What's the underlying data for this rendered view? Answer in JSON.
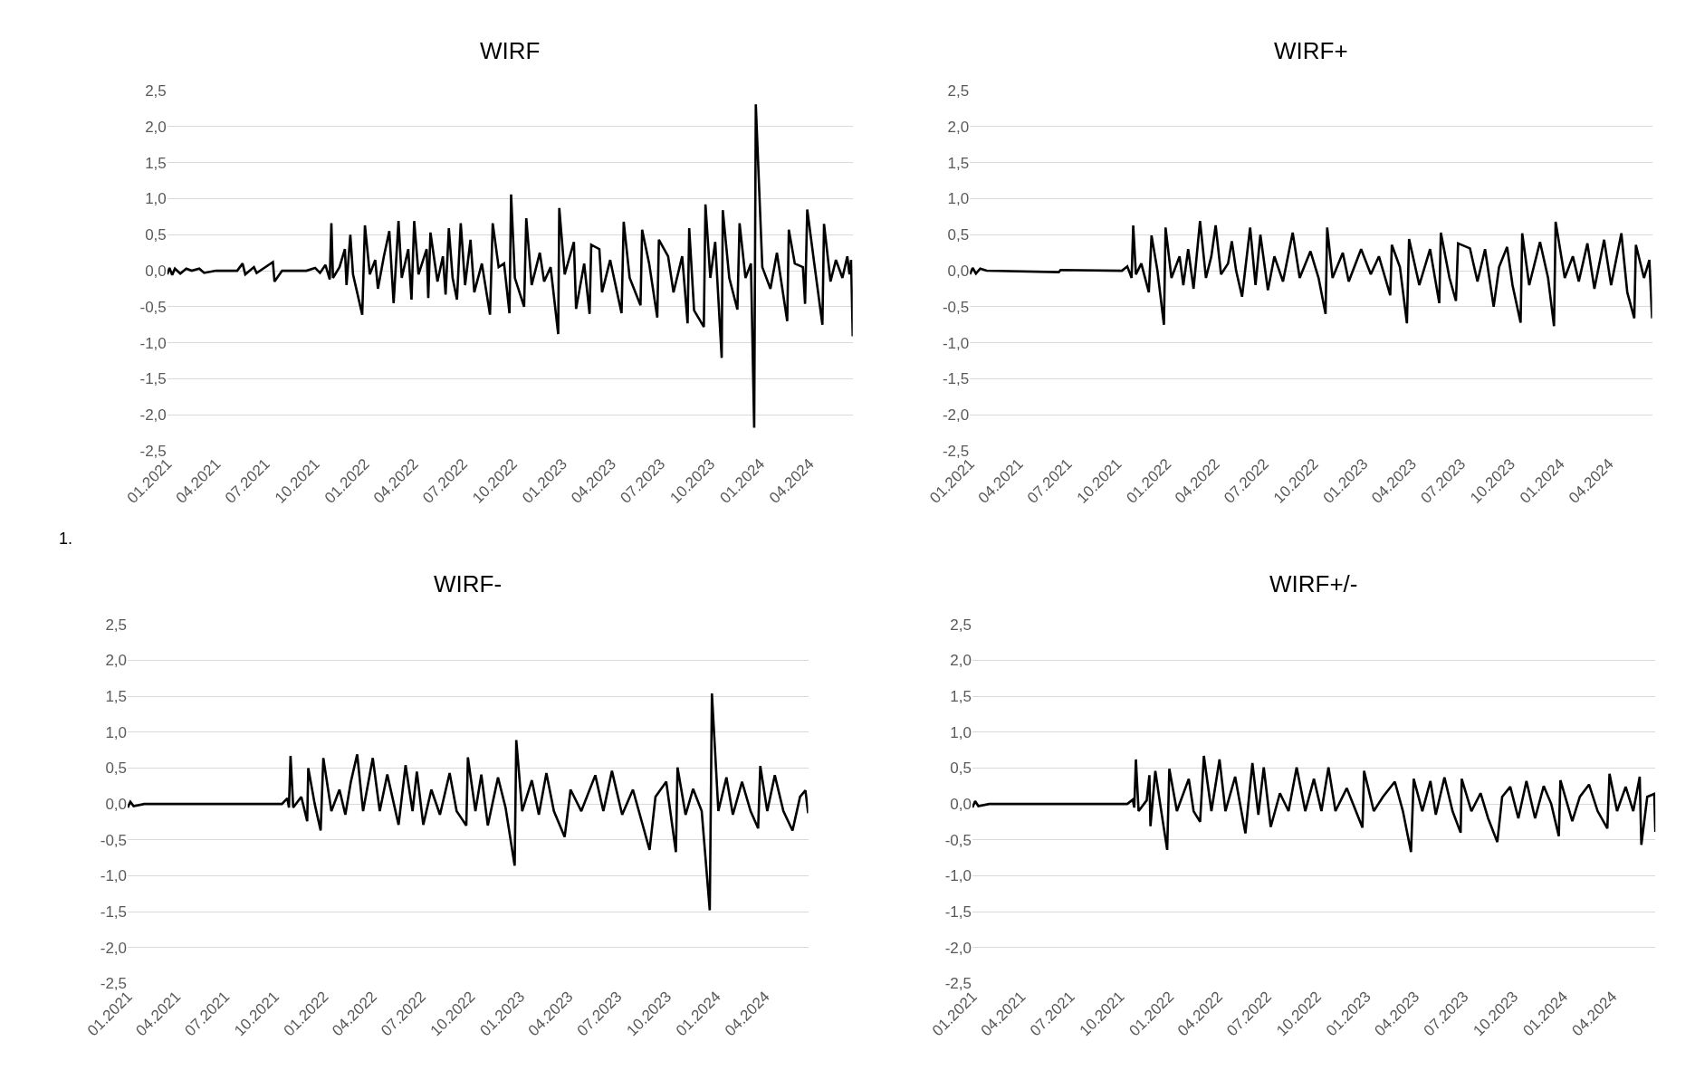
{
  "chart_data": [
    {
      "type": "line",
      "title": "WIRF",
      "color": "#000000",
      "grid": "y",
      "annotations": [
        "1."
      ],
      "xlim": [
        "2021-01-01",
        "2024-06-20"
      ],
      "ylim": [
        -2.5,
        2.5
      ],
      "xticks": [
        {
          "value": "2021-01-01",
          "label": "01.2021"
        },
        {
          "value": "2021-04-01",
          "label": "04.2021"
        },
        {
          "value": "2021-07-01",
          "label": "07.2021"
        },
        {
          "value": "2021-10-01",
          "label": "10.2021"
        },
        {
          "value": "2022-01-01",
          "label": "01.2022"
        },
        {
          "value": "2022-04-01",
          "label": "04.2022"
        },
        {
          "value": "2022-07-01",
          "label": "07.2022"
        },
        {
          "value": "2022-10-01",
          "label": "10.2022"
        },
        {
          "value": "2023-01-01",
          "label": "01.2023"
        },
        {
          "value": "2023-04-01",
          "label": "04.2023"
        },
        {
          "value": "2023-07-01",
          "label": "07.2023"
        },
        {
          "value": "2023-10-01",
          "label": "10.2023"
        },
        {
          "value": "2024-01-01",
          "label": "01.2024"
        },
        {
          "value": "2024-04-01",
          "label": "04.2024"
        }
      ],
      "yticks": [
        {
          "value": -2.5,
          "label": "-2,5"
        },
        {
          "value": -2,
          "label": "-2,0"
        },
        {
          "value": -1.5,
          "label": "-1,5"
        },
        {
          "value": -1,
          "label": "-1,0"
        },
        {
          "value": -0.5,
          "label": "-0,5"
        },
        {
          "value": 0,
          "label": "0,0"
        },
        {
          "value": 0.5,
          "label": "0,5"
        },
        {
          "value": 1,
          "label": "1,0"
        },
        {
          "value": 1.5,
          "label": "1,5"
        },
        {
          "value": 2,
          "label": "2,0"
        },
        {
          "value": 2.5,
          "label": "2,5"
        }
      ],
      "x": [
        "2021-01-01",
        "2021-01-05",
        "2021-01-10",
        "2021-01-15",
        "2021-01-25",
        "2021-02-05",
        "2021-02-15",
        "2021-03-01",
        "2021-03-10",
        "2021-04-01",
        "2021-05-10",
        "2021-05-20",
        "2021-05-25",
        "2021-06-10",
        "2021-06-15",
        "2021-07-15",
        "2021-07-18",
        "2021-08-01",
        "2021-09-15",
        "2021-10-01",
        "2021-10-10",
        "2021-10-20",
        "2021-10-28",
        "2021-10-31",
        "2021-11-03",
        "2021-11-15",
        "2021-11-25",
        "2021-11-28",
        "2021-12-05",
        "2021-12-10",
        "2021-12-27",
        "2022-01-01",
        "2022-01-10",
        "2022-01-20",
        "2022-01-25",
        "2022-02-05",
        "2022-02-15",
        "2022-02-23",
        "2022-03-04",
        "2022-03-10",
        "2022-03-22",
        "2022-03-28",
        "2022-04-02",
        "2022-04-10",
        "2022-04-25",
        "2022-04-28",
        "2022-05-02",
        "2022-05-15",
        "2022-05-25",
        "2022-05-30",
        "2022-06-05",
        "2022-06-12",
        "2022-06-20",
        "2022-06-27",
        "2022-07-05",
        "2022-07-15",
        "2022-07-22",
        "2022-08-05",
        "2022-08-20",
        "2022-08-25",
        "2022-09-05",
        "2022-09-15",
        "2022-09-25",
        "2022-09-28",
        "2022-10-05",
        "2022-10-22",
        "2022-10-26",
        "2022-11-05",
        "2022-11-20",
        "2022-11-28",
        "2022-12-10",
        "2022-12-24",
        "2022-12-26",
        "2023-01-05",
        "2023-01-22",
        "2023-01-26",
        "2023-02-10",
        "2023-02-20",
        "2023-02-23",
        "2023-03-10",
        "2023-03-15",
        "2023-03-30",
        "2023-04-20",
        "2023-04-24",
        "2023-05-05",
        "2023-05-25",
        "2023-05-28",
        "2023-06-10",
        "2023-06-25",
        "2023-06-28",
        "2023-07-15",
        "2023-07-25",
        "2023-08-10",
        "2023-08-20",
        "2023-08-23",
        "2023-09-01",
        "2023-09-19",
        "2023-09-22",
        "2023-10-01",
        "2023-10-10",
        "2023-10-22",
        "2023-10-24",
        "2023-11-05",
        "2023-11-20",
        "2023-11-24",
        "2023-12-05",
        "2023-12-15",
        "2023-12-21",
        "2023-12-24",
        "2024-01-05",
        "2024-01-20",
        "2024-02-01",
        "2024-02-20",
        "2024-02-23",
        "2024-03-05",
        "2024-03-20",
        "2024-03-24",
        "2024-03-28",
        "2024-04-10",
        "2024-04-25",
        "2024-04-28",
        "2024-05-10",
        "2024-05-20",
        "2024-06-01",
        "2024-06-10",
        "2024-06-14",
        "2024-06-17",
        "2024-06-20"
      ],
      "values": [
        -0.05,
        0.04,
        -0.06,
        0.03,
        -0.04,
        0.03,
        0,
        0.03,
        -0.03,
        0,
        0,
        0.1,
        -0.05,
        0.05,
        -0.03,
        0.12,
        -0.15,
        0,
        0,
        0.04,
        -0.03,
        0.08,
        -0.12,
        0.66,
        -0.1,
        0.05,
        0.3,
        -0.2,
        0.5,
        -0.05,
        -0.61,
        0.63,
        -0.05,
        0.15,
        -0.25,
        0.2,
        0.55,
        -0.45,
        0.69,
        -0.1,
        0.3,
        -0.4,
        0.69,
        -0.05,
        0.3,
        -0.38,
        0.53,
        -0.15,
        0.2,
        -0.33,
        0.59,
        -0.1,
        -0.4,
        0.66,
        -0.2,
        0.43,
        -0.3,
        0.1,
        -0.61,
        0.66,
        0.05,
        0.1,
        -0.59,
        1.06,
        -0.1,
        -0.5,
        0.73,
        -0.2,
        0.25,
        -0.15,
        0.05,
        -0.88,
        0.87,
        -0.05,
        0.4,
        -0.53,
        0.1,
        -0.6,
        0.36,
        0.3,
        -0.3,
        0.15,
        -0.59,
        0.68,
        -0.1,
        -0.48,
        0.57,
        0.1,
        -0.65,
        0.43,
        0.2,
        -0.3,
        0.2,
        -0.73,
        0.59,
        -0.55,
        -0.78,
        0.92,
        -0.1,
        0.4,
        -1.21,
        0.84,
        -0.1,
        -0.54,
        0.66,
        -0.1,
        0.1,
        -2.18,
        2.31,
        0.05,
        -0.25,
        0.25,
        -0.7,
        0.57,
        0.1,
        0.05,
        -0.46,
        0.85,
        0.1,
        -0.75,
        0.65,
        -0.15,
        0.15,
        -0.1,
        0.2,
        -0.05,
        0.15,
        -0.91
      ]
    },
    {
      "type": "line",
      "title": "WIRF+",
      "color": "#000000",
      "grid": "y",
      "xlim": [
        "2021-01-01",
        "2024-06-20"
      ],
      "ylim": [
        -2.5,
        2.5
      ],
      "xticks": [
        {
          "value": "2021-01-01",
          "label": "01.2021"
        },
        {
          "value": "2021-04-01",
          "label": "04.2021"
        },
        {
          "value": "2021-07-01",
          "label": "07.2021"
        },
        {
          "value": "2021-10-01",
          "label": "10.2021"
        },
        {
          "value": "2022-01-01",
          "label": "01.2022"
        },
        {
          "value": "2022-04-01",
          "label": "04.2022"
        },
        {
          "value": "2022-07-01",
          "label": "07.2022"
        },
        {
          "value": "2022-10-01",
          "label": "10.2022"
        },
        {
          "value": "2023-01-01",
          "label": "01.2023"
        },
        {
          "value": "2023-04-01",
          "label": "04.2023"
        },
        {
          "value": "2023-07-01",
          "label": "07.2023"
        },
        {
          "value": "2023-10-01",
          "label": "10.2023"
        },
        {
          "value": "2024-01-01",
          "label": "01.2024"
        },
        {
          "value": "2024-04-01",
          "label": "04.2024"
        }
      ],
      "yticks": [
        {
          "value": -2.5,
          "label": "-2,5"
        },
        {
          "value": -2,
          "label": "-2,0"
        },
        {
          "value": -1.5,
          "label": "-1,5"
        },
        {
          "value": -1,
          "label": "-1,0"
        },
        {
          "value": -0.5,
          "label": "-0,5"
        },
        {
          "value": 0,
          "label": "0,0"
        },
        {
          "value": 0.5,
          "label": "0,5"
        },
        {
          "value": 1,
          "label": "1,0"
        },
        {
          "value": 1.5,
          "label": "1,5"
        },
        {
          "value": 2,
          "label": "2,0"
        },
        {
          "value": 2.5,
          "label": "2,5"
        }
      ],
      "x": [
        "2021-01-01",
        "2021-01-06",
        "2021-01-12",
        "2021-01-20",
        "2021-02-01",
        "2021-06-15",
        "2021-06-18",
        "2021-10-10",
        "2021-10-20",
        "2021-10-28",
        "2021-10-31",
        "2021-11-05",
        "2021-11-15",
        "2021-11-29",
        "2021-12-04",
        "2021-12-15",
        "2021-12-27",
        "2021-12-30",
        "2022-01-10",
        "2022-01-25",
        "2022-02-01",
        "2022-02-10",
        "2022-02-20",
        "2022-03-04",
        "2022-03-15",
        "2022-03-25",
        "2022-04-02",
        "2022-04-12",
        "2022-04-25",
        "2022-05-02",
        "2022-05-10",
        "2022-05-21",
        "2022-06-05",
        "2022-06-15",
        "2022-06-24",
        "2022-07-08",
        "2022-07-20",
        "2022-08-05",
        "2022-08-23",
        "2022-09-05",
        "2022-09-25",
        "2022-10-10",
        "2022-10-23",
        "2022-10-26",
        "2022-11-05",
        "2022-11-24",
        "2022-12-05",
        "2022-12-28",
        "2023-01-15",
        "2023-01-30",
        "2023-02-20",
        "2023-02-23",
        "2023-03-10",
        "2023-03-23",
        "2023-03-27",
        "2023-04-15",
        "2023-05-05",
        "2023-05-22",
        "2023-05-25",
        "2023-06-10",
        "2023-06-22",
        "2023-06-26",
        "2023-07-18",
        "2023-08-01",
        "2023-08-15",
        "2023-08-31",
        "2023-09-10",
        "2023-09-25",
        "2023-10-05",
        "2023-10-20",
        "2023-10-23",
        "2023-11-05",
        "2023-11-25",
        "2023-12-10",
        "2023-12-21",
        "2023-12-24",
        "2024-01-10",
        "2024-01-25",
        "2024-02-05",
        "2024-02-21",
        "2024-03-05",
        "2024-03-23",
        "2024-04-05",
        "2024-04-24",
        "2024-05-05",
        "2024-05-18",
        "2024-05-21",
        "2024-06-05",
        "2024-06-15",
        "2024-06-20"
      ],
      "values": [
        -0.05,
        0.04,
        -0.04,
        0.03,
        0,
        -0.02,
        0.01,
        0,
        0.06,
        -0.1,
        0.63,
        -0.05,
        0.1,
        -0.3,
        0.49,
        0,
        -0.75,
        0.6,
        -0.1,
        0.2,
        -0.2,
        0.3,
        -0.25,
        0.69,
        -0.1,
        0.2,
        0.63,
        -0.05,
        0.1,
        0.41,
        0,
        -0.36,
        0.6,
        -0.2,
        0.5,
        -0.27,
        0.2,
        -0.15,
        0.53,
        -0.1,
        0.27,
        -0.1,
        -0.6,
        0.6,
        -0.1,
        0.25,
        -0.15,
        0.3,
        -0.05,
        0.2,
        -0.34,
        0.36,
        0.05,
        -0.73,
        0.44,
        -0.2,
        0.3,
        -0.45,
        0.53,
        -0.1,
        -0.42,
        0.38,
        0.31,
        -0.15,
        0.3,
        -0.5,
        0.05,
        0.33,
        -0.2,
        -0.72,
        0.52,
        -0.2,
        0.4,
        -0.1,
        -0.77,
        0.68,
        -0.1,
        0.2,
        -0.15,
        0.38,
        -0.25,
        0.43,
        -0.2,
        0.52,
        -0.3,
        -0.66,
        0.36,
        -0.1,
        0.15,
        -0.66
      ]
    },
    {
      "type": "line",
      "title": "WIRF-",
      "color": "#000000",
      "grid": "y",
      "xlim": [
        "2021-01-01",
        "2024-06-20"
      ],
      "ylim": [
        -2.5,
        2.5
      ],
      "xticks": [
        {
          "value": "2021-01-01",
          "label": "01.2021"
        },
        {
          "value": "2021-04-01",
          "label": "04.2021"
        },
        {
          "value": "2021-07-01",
          "label": "07.2021"
        },
        {
          "value": "2021-10-01",
          "label": "10.2021"
        },
        {
          "value": "2022-01-01",
          "label": "01.2022"
        },
        {
          "value": "2022-04-01",
          "label": "04.2022"
        },
        {
          "value": "2022-07-01",
          "label": "07.2022"
        },
        {
          "value": "2022-10-01",
          "label": "10.2022"
        },
        {
          "value": "2023-01-01",
          "label": "01.2023"
        },
        {
          "value": "2023-04-01",
          "label": "04.2023"
        },
        {
          "value": "2023-07-01",
          "label": "07.2023"
        },
        {
          "value": "2023-10-01",
          "label": "10.2023"
        },
        {
          "value": "2024-01-01",
          "label": "01.2024"
        },
        {
          "value": "2024-04-01",
          "label": "04.2024"
        }
      ],
      "yticks": [
        {
          "value": -2.5,
          "label": "-2,5"
        },
        {
          "value": -2,
          "label": "-2,0"
        },
        {
          "value": -1.5,
          "label": "-1,5"
        },
        {
          "value": -1,
          "label": "-1,0"
        },
        {
          "value": -0.5,
          "label": "-0,5"
        },
        {
          "value": 0,
          "label": "0,0"
        },
        {
          "value": 0.5,
          "label": "0,5"
        },
        {
          "value": 1,
          "label": "1,0"
        },
        {
          "value": 1.5,
          "label": "1,5"
        },
        {
          "value": 2,
          "label": "2,0"
        },
        {
          "value": 2.5,
          "label": "2,5"
        }
      ],
      "x": [
        "2021-01-01",
        "2021-01-06",
        "2021-01-12",
        "2021-02-01",
        "2021-10-15",
        "2021-10-25",
        "2021-10-28",
        "2021-10-31",
        "2021-11-05",
        "2021-11-20",
        "2021-12-01",
        "2021-12-03",
        "2021-12-15",
        "2021-12-26",
        "2021-12-31",
        "2022-01-15",
        "2022-01-30",
        "2022-02-10",
        "2022-02-20",
        "2022-03-04",
        "2022-03-15",
        "2022-04-02",
        "2022-04-15",
        "2022-04-29",
        "2022-05-20",
        "2022-06-02",
        "2022-06-15",
        "2022-06-23",
        "2022-07-05",
        "2022-07-20",
        "2022-08-05",
        "2022-08-23",
        "2022-09-05",
        "2022-09-23",
        "2022-09-26",
        "2022-10-10",
        "2022-10-21",
        "2022-11-02",
        "2022-11-21",
        "2022-12-05",
        "2022-12-22",
        "2022-12-25",
        "2023-01-05",
        "2023-01-23",
        "2023-02-05",
        "2023-02-19",
        "2023-03-05",
        "2023-03-25",
        "2023-04-05",
        "2023-04-25",
        "2023-05-21",
        "2023-06-05",
        "2023-06-21",
        "2023-07-10",
        "2023-07-30",
        "2023-08-30",
        "2023-09-10",
        "2023-09-30",
        "2023-10-18",
        "2023-10-21",
        "2023-11-05",
        "2023-11-19",
        "2023-12-05",
        "2023-12-20",
        "2023-12-24",
        "2024-01-05",
        "2024-01-20",
        "2024-02-01",
        "2024-02-18",
        "2024-03-05",
        "2024-03-19",
        "2024-03-23",
        "2024-04-05",
        "2024-04-19",
        "2024-05-05",
        "2024-05-22",
        "2024-06-05",
        "2024-06-15",
        "2024-06-20"
      ],
      "values": [
        -0.05,
        0.03,
        -0.03,
        0,
        0,
        0.08,
        -0.05,
        0.67,
        -0.05,
        0.1,
        -0.24,
        0.5,
        0,
        -0.37,
        0.64,
        -0.1,
        0.2,
        -0.15,
        0.3,
        0.69,
        -0.1,
        0.64,
        -0.1,
        0.41,
        -0.29,
        0.54,
        -0.1,
        0.45,
        -0.29,
        0.2,
        -0.15,
        0.43,
        -0.1,
        -0.3,
        0.65,
        -0.1,
        0.41,
        -0.3,
        0.37,
        -0.05,
        -0.86,
        0.89,
        -0.1,
        0.33,
        -0.15,
        0.43,
        -0.1,
        -0.46,
        0.2,
        -0.1,
        0.4,
        -0.1,
        0.46,
        -0.15,
        0.2,
        -0.64,
        0.1,
        0.31,
        -0.67,
        0.51,
        -0.15,
        0.21,
        -0.1,
        -1.48,
        1.54,
        -0.1,
        0.37,
        -0.15,
        0.31,
        -0.1,
        -0.34,
        0.53,
        -0.1,
        0.4,
        -0.1,
        -0.37,
        0.1,
        0.19,
        -0.13
      ]
    },
    {
      "type": "line",
      "title": "WIRF+/-",
      "color": "#000000",
      "grid": "y",
      "xlim": [
        "2021-01-01",
        "2024-06-20"
      ],
      "ylim": [
        -2.5,
        2.5
      ],
      "xticks": [
        {
          "value": "2021-01-01",
          "label": "01.2021"
        },
        {
          "value": "2021-04-01",
          "label": "04.2021"
        },
        {
          "value": "2021-07-01",
          "label": "07.2021"
        },
        {
          "value": "2021-10-01",
          "label": "10.2021"
        },
        {
          "value": "2022-01-01",
          "label": "01.2022"
        },
        {
          "value": "2022-04-01",
          "label": "04.2022"
        },
        {
          "value": "2022-07-01",
          "label": "07.2022"
        },
        {
          "value": "2022-10-01",
          "label": "10.2022"
        },
        {
          "value": "2023-01-01",
          "label": "01.2023"
        },
        {
          "value": "2023-04-01",
          "label": "04.2023"
        },
        {
          "value": "2023-07-01",
          "label": "07.2023"
        },
        {
          "value": "2023-10-01",
          "label": "10.2023"
        },
        {
          "value": "2024-01-01",
          "label": "01.2024"
        },
        {
          "value": "2024-04-01",
          "label": "04.2024"
        }
      ],
      "yticks": [
        {
          "value": -2.5,
          "label": "-2,5"
        },
        {
          "value": -2,
          "label": "-2,0"
        },
        {
          "value": -1.5,
          "label": "-1,5"
        },
        {
          "value": -1,
          "label": "-1,0"
        },
        {
          "value": -0.5,
          "label": "-0,5"
        },
        {
          "value": 0,
          "label": "0,0"
        },
        {
          "value": 0.5,
          "label": "0,5"
        },
        {
          "value": 1,
          "label": "1,0"
        },
        {
          "value": 1.5,
          "label": "1,5"
        },
        {
          "value": 2,
          "label": "2,0"
        },
        {
          "value": 2.5,
          "label": "2,5"
        }
      ],
      "x": [
        "2021-01-01",
        "2021-01-06",
        "2021-01-12",
        "2021-02-01",
        "2021-10-15",
        "2021-10-25",
        "2021-10-28",
        "2021-10-31",
        "2021-11-05",
        "2021-11-20",
        "2021-11-25",
        "2021-11-27",
        "2021-12-06",
        "2021-12-15",
        "2021-12-28",
        "2022-01-01",
        "2022-01-15",
        "2022-02-06",
        "2022-02-15",
        "2022-02-27",
        "2022-03-06",
        "2022-03-20",
        "2022-04-04",
        "2022-04-15",
        "2022-05-03",
        "2022-05-22",
        "2022-06-04",
        "2022-06-15",
        "2022-06-25",
        "2022-07-08",
        "2022-07-25",
        "2022-08-10",
        "2022-08-25",
        "2022-09-10",
        "2022-09-26",
        "2022-10-10",
        "2022-10-23",
        "2022-11-05",
        "2022-11-26",
        "2022-12-25",
        "2022-12-28",
        "2023-01-15",
        "2023-02-01",
        "2023-02-23",
        "2023-03-10",
        "2023-03-25",
        "2023-03-30",
        "2023-04-15",
        "2023-04-30",
        "2023-05-10",
        "2023-05-26",
        "2023-06-10",
        "2023-06-25",
        "2023-06-27",
        "2023-07-15",
        "2023-08-01",
        "2023-08-15",
        "2023-09-01",
        "2023-09-10",
        "2023-09-25",
        "2023-10-10",
        "2023-10-25",
        "2023-11-10",
        "2023-11-26",
        "2023-12-10",
        "2023-12-24",
        "2023-12-27",
        "2024-01-18",
        "2024-02-01",
        "2024-02-18",
        "2024-03-05",
        "2024-03-23",
        "2024-03-27",
        "2024-04-10",
        "2024-04-26",
        "2024-05-10",
        "2024-05-22",
        "2024-05-25",
        "2024-06-05",
        "2024-06-18",
        "2024-06-20"
      ],
      "values": [
        -0.05,
        0.04,
        -0.03,
        0,
        0,
        0.06,
        -0.05,
        0.62,
        -0.1,
        0.05,
        0.4,
        -0.31,
        0.46,
        0,
        -0.64,
        0.49,
        -0.1,
        0.35,
        -0.1,
        -0.25,
        0.67,
        -0.1,
        0.62,
        -0.1,
        0.38,
        -0.41,
        0.57,
        -0.15,
        0.51,
        -0.32,
        0.15,
        -0.1,
        0.51,
        -0.1,
        0.35,
        -0.1,
        0.51,
        -0.1,
        0.22,
        -0.33,
        0.46,
        -0.1,
        0.1,
        0.31,
        -0.1,
        -0.67,
        0.35,
        -0.1,
        0.32,
        -0.15,
        0.37,
        -0.1,
        -0.4,
        0.35,
        -0.1,
        0.15,
        -0.2,
        -0.53,
        0.1,
        0.24,
        -0.2,
        0.32,
        -0.2,
        0.25,
        0,
        -0.45,
        0.33,
        -0.24,
        0.1,
        0.27,
        -0.1,
        -0.34,
        0.42,
        -0.1,
        0.24,
        -0.1,
        0.38,
        -0.57,
        0.1,
        0.14,
        -0.39
      ]
    }
  ]
}
